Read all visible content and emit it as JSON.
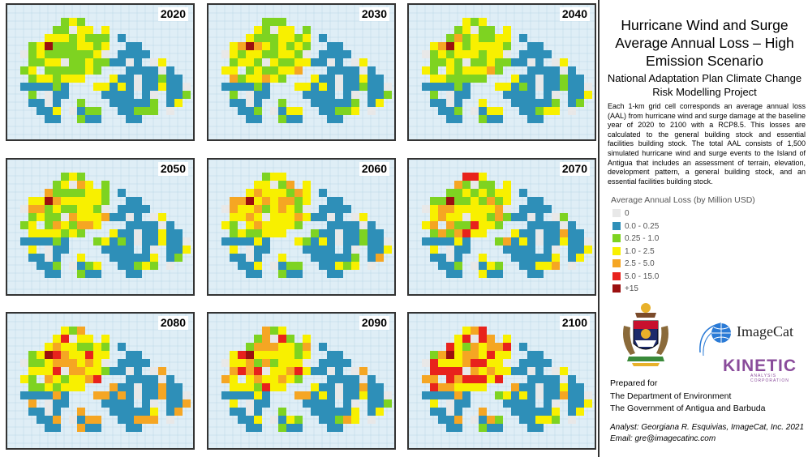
{
  "maps": [
    {
      "year": "2020"
    },
    {
      "year": "2030"
    },
    {
      "year": "2040"
    },
    {
      "year": "2050"
    },
    {
      "year": "2060"
    },
    {
      "year": "2070"
    },
    {
      "year": "2080"
    },
    {
      "year": "2090"
    },
    {
      "year": "2100"
    }
  ],
  "title": {
    "line1": "Hurricane Wind and Surge",
    "line2": "Average Annual Loss – High",
    "line3": "Emission Scenario"
  },
  "subtitle": {
    "line1": "National Adaptation Plan Climate Change",
    "line2": "Risk Modelling Project"
  },
  "description": "Each 1-km grid cell corresponds an average annual loss (AAL) from hurricane wind and surge damage at the baseline year of 2020 to 2100 with a RCP8.5. This losses are calculated to the general building stock and essential facilities building stock. The total AAL consists of 1,500 simulated hurricane wind and surge events to the Island of Antigua that includes an assessment of terrain, elevation, development pattern, a general building stock, and an essential facilities building stock.",
  "legend": {
    "title": "Average Annual Loss (by Million USD)",
    "items": [
      {
        "label": "0",
        "color": "#e8e8e8"
      },
      {
        "label": "0.0 - 0.25",
        "color": "#2e8fb8"
      },
      {
        "label": "0.25 - 1.0",
        "color": "#7ed321"
      },
      {
        "label": "1.0 - 2.5",
        "color": "#f8f000"
      },
      {
        "label": "2.5 - 5.0",
        "color": "#f5a623"
      },
      {
        "label": "5.0 - 15.0",
        "color": "#e8221c"
      },
      {
        "label": "+15",
        "color": "#9b0f0f"
      }
    ]
  },
  "logos": {
    "imagecat": "ImageCat",
    "kinetic": "KINETIC",
    "kinetic_sub": "ANALYSIS CORPORATION"
  },
  "prepared": {
    "line1": "Prepared for",
    "line2": "The Department of Environment",
    "line3": "The Government of Antigua and Barbuda"
  },
  "analyst": {
    "line1": "Analyst: Georgiana R. Esquivias, ImageCat, Inc. 2021",
    "line2": "Email: gre@imagecatinc.com"
  }
}
